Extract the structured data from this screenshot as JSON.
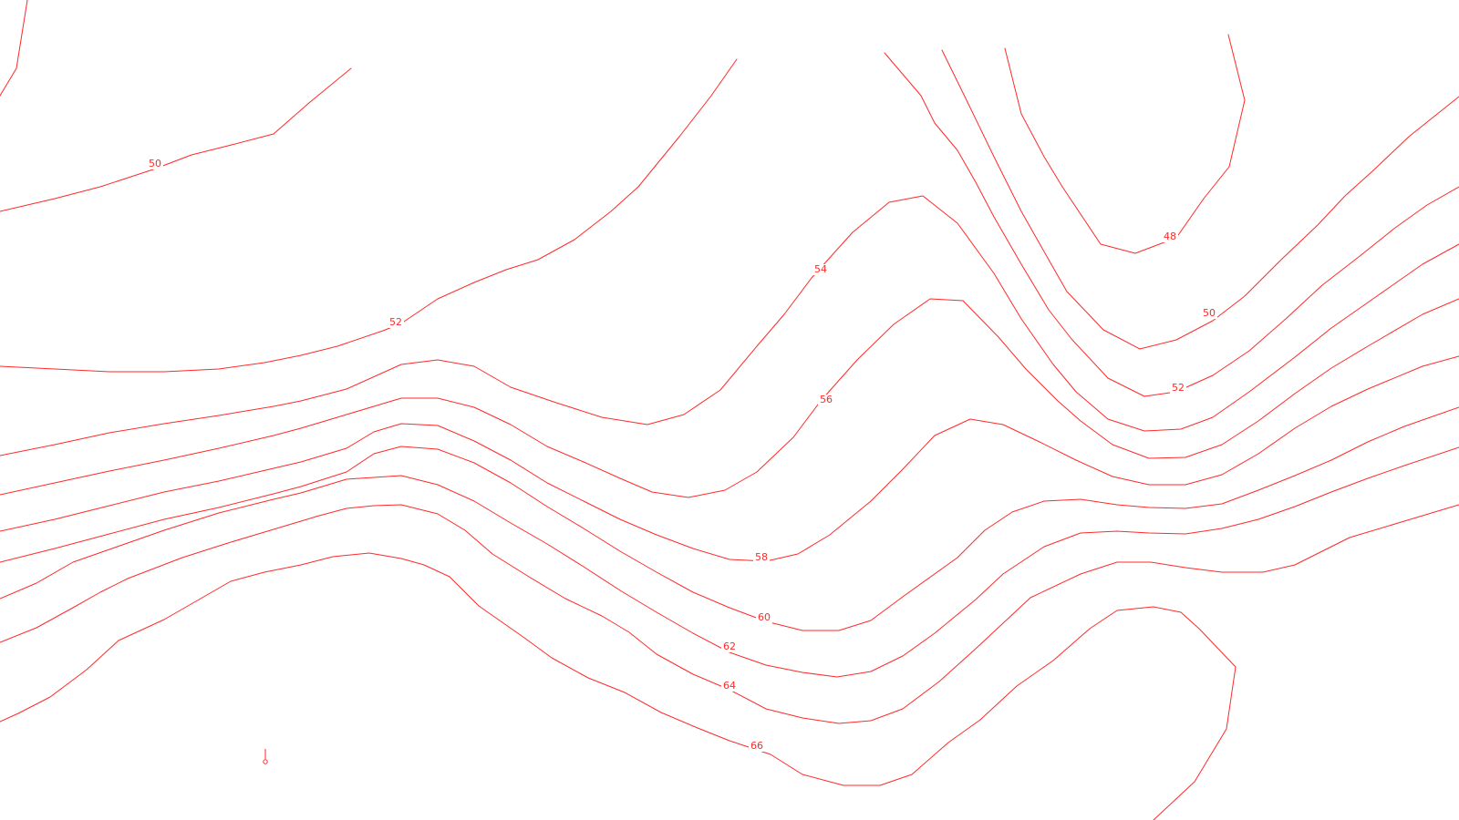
{
  "map": {
    "line_color": "#ff2a2a",
    "contours": [
      {
        "id": "c50-left",
        "label": "50"
      },
      {
        "id": "c52-left",
        "label": "52"
      },
      {
        "id": "c54",
        "label": "54"
      },
      {
        "id": "c56",
        "label": "56"
      },
      {
        "id": "c58",
        "label": "58"
      },
      {
        "id": "c60",
        "label": "60"
      },
      {
        "id": "c62",
        "label": "62"
      },
      {
        "id": "c64",
        "label": "64"
      },
      {
        "id": "c66",
        "label": "66"
      },
      {
        "id": "c48",
        "label": "48"
      },
      {
        "id": "c50-right",
        "label": "50"
      },
      {
        "id": "c52-right",
        "label": "52"
      },
      {
        "id": "c-top-left-edge",
        "label": ""
      },
      {
        "id": "c-bottom-right-loop",
        "label": ""
      }
    ],
    "marker_icon": "small-marker-icon"
  }
}
